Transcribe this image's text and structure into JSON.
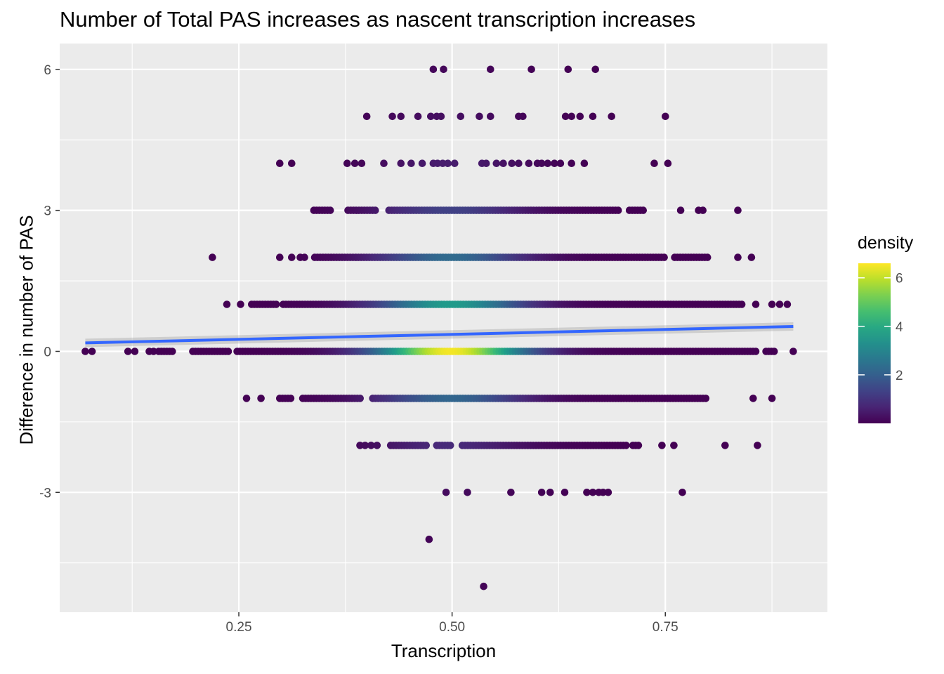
{
  "chart_data": {
    "type": "scatter",
    "title": "Number of Total PAS increases as nascent transcription increases",
    "xlabel": "Transcription",
    "ylabel": "Difference in number of PAS",
    "xlim": [
      0.04,
      0.94
    ],
    "ylim": [
      -5.55,
      6.55
    ],
    "x_ticks": [
      0.25,
      0.5,
      0.75
    ],
    "x_tick_labels": [
      "0.25",
      "0.50",
      "0.75"
    ],
    "y_ticks": [
      -3,
      0,
      3,
      6
    ],
    "y_tick_labels": [
      "-3",
      "0",
      "3",
      "6"
    ],
    "grid": true,
    "legend": {
      "title": "density",
      "position": "right",
      "colormap": "viridis",
      "range": [
        0,
        6.6
      ],
      "ticks": [
        2,
        4,
        6
      ],
      "tick_labels": [
        "2",
        "4",
        "6"
      ]
    },
    "trend_line": {
      "method": "lm",
      "x": [
        0.07,
        0.9
      ],
      "y": [
        0.18,
        0.53
      ],
      "color": "#3366ff"
    },
    "bands": [
      {
        "y": 6,
        "xs": [
          0.478,
          0.49,
          0.545,
          0.593,
          0.636,
          0.668
        ]
      },
      {
        "y": 5,
        "xs": [
          0.4,
          0.43,
          0.44,
          0.46,
          0.475,
          0.482,
          0.487,
          0.51,
          0.532,
          0.545,
          0.578,
          0.583,
          0.633,
          0.64,
          0.65,
          0.665,
          0.687,
          0.75
        ]
      },
      {
        "y": 4,
        "xs": [
          0.298,
          0.312,
          0.377,
          0.386,
          0.394,
          0.42,
          0.44,
          0.452,
          0.465,
          0.478,
          0.483,
          0.489,
          0.495,
          0.503,
          0.535,
          0.54,
          0.552,
          0.56,
          0.57,
          0.578,
          0.59,
          0.6,
          0.605,
          0.612,
          0.62,
          0.627,
          0.64,
          0.655,
          0.737,
          0.753
        ]
      },
      {
        "y": 3,
        "cont": [
          [
            0.338,
            0.36
          ],
          [
            0.378,
            0.413
          ],
          [
            0.426,
            0.695
          ],
          [
            0.708,
            0.725
          ]
        ],
        "xs": [
          0.768,
          0.789,
          0.794,
          0.835
        ]
      },
      {
        "y": 2,
        "xs": [
          0.219,
          0.298,
          0.312,
          0.322,
          0.327,
          0.835,
          0.851
        ],
        "cont": [
          [
            0.339,
            0.75
          ],
          [
            0.761,
            0.8
          ]
        ]
      },
      {
        "y": 1,
        "xs": [
          0.236,
          0.252,
          0.856,
          0.875,
          0.884,
          0.893
        ],
        "cont": [
          [
            0.265,
            0.294
          ],
          [
            0.302,
            0.84
          ]
        ]
      },
      {
        "y": 0,
        "cont": [
          [
            0.156,
            0.172
          ],
          [
            0.196,
            0.24
          ],
          [
            0.248,
            0.858
          ],
          [
            0.868,
            0.88
          ]
        ],
        "xs": [
          0.07,
          0.078,
          0.12,
          0.128,
          0.145,
          0.15,
          0.9
        ]
      },
      {
        "y": -1,
        "xs": [
          0.259,
          0.276,
          0.853,
          0.875
        ],
        "cont": [
          [
            0.298,
            0.313
          ],
          [
            0.325,
            0.393
          ],
          [
            0.407,
            0.8
          ]
        ]
      },
      {
        "y": -2,
        "xs": [
          0.392,
          0.398,
          0.405,
          0.412,
          0.746,
          0.76,
          0.82,
          0.858
        ],
        "cont": [
          [
            0.428,
            0.472
          ],
          [
            0.482,
            0.5
          ],
          [
            0.512,
            0.706
          ],
          [
            0.712,
            0.72
          ]
        ]
      },
      {
        "y": -3,
        "xs": [
          0.493,
          0.518,
          0.569,
          0.605,
          0.615,
          0.632,
          0.658,
          0.665,
          0.672,
          0.677,
          0.683,
          0.77
        ]
      },
      {
        "y": -4,
        "xs": [
          0.473
        ]
      },
      {
        "y": -5,
        "xs": [
          0.537
        ]
      }
    ]
  }
}
